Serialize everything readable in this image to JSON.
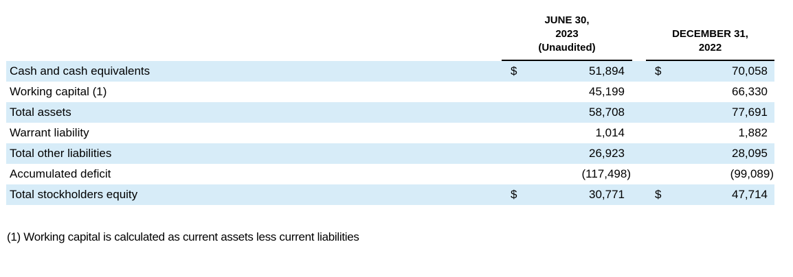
{
  "table": {
    "column_headers": [
      {
        "lines": [
          "JUNE 30,",
          "2023",
          "(Unaudited)"
        ]
      },
      {
        "lines": [
          "DECEMBER 31,",
          "2022"
        ]
      }
    ],
    "rows": [
      {
        "label": "Cash and cash equivalents",
        "currency": "$",
        "jun_2023": "51,894",
        "dec_2022": "70,058"
      },
      {
        "label": "Working capital (1)",
        "jun_2023": "45,199",
        "dec_2022": "66,330"
      },
      {
        "label": "Total assets",
        "jun_2023": "58,708",
        "dec_2022": "77,691"
      },
      {
        "label": "Warrant liability",
        "jun_2023": "1,014",
        "dec_2022": "1,882"
      },
      {
        "label": "Total other liabilities",
        "jun_2023": "26,923",
        "dec_2022": "28,095"
      },
      {
        "label": "Accumulated deficit",
        "jun_2023": "(117,498)",
        "dec_2022": "(99,089)"
      },
      {
        "label": "Total stockholders equity",
        "currency": "$",
        "jun_2023": "30,771",
        "dec_2022": "47,714"
      }
    ]
  },
  "footnote": "(1) Working capital is calculated as current assets less current liabilities",
  "colors": {
    "row_highlight": "#d7ecf8",
    "text": "#000000",
    "header_rule": "#000000"
  }
}
